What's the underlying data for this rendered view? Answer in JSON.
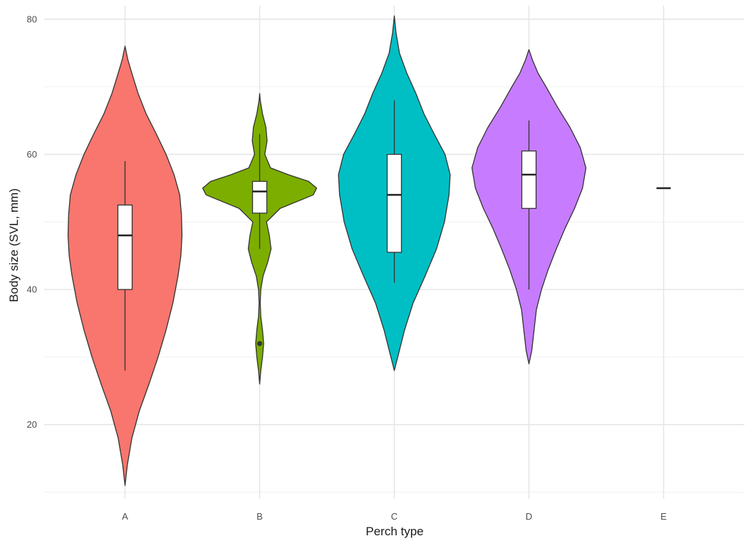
{
  "chart_data": {
    "type": "violin",
    "xlabel": "Perch type",
    "ylabel": "Body size (SVL, mm)",
    "ylim": [
      9,
      82
    ],
    "y_ticks": [
      20,
      40,
      60,
      80
    ],
    "categories": [
      "A",
      "B",
      "C",
      "D",
      "E"
    ],
    "grid": true,
    "legend": "none",
    "groups": [
      {
        "category": "A",
        "color": "#F8766D",
        "box": {
          "whisker_low": 28,
          "q1": 40,
          "median": 48,
          "q3": 52.5,
          "whisker_high": 59
        },
        "outliers": [],
        "density": [
          [
            11,
            0
          ],
          [
            14,
            0.04
          ],
          [
            18,
            0.12
          ],
          [
            22,
            0.25
          ],
          [
            26,
            0.42
          ],
          [
            30,
            0.58
          ],
          [
            34,
            0.72
          ],
          [
            38,
            0.84
          ],
          [
            42,
            0.93
          ],
          [
            45,
            0.98
          ],
          [
            48,
            1.0
          ],
          [
            51,
            0.99
          ],
          [
            54,
            0.96
          ],
          [
            57,
            0.86
          ],
          [
            60,
            0.72
          ],
          [
            63,
            0.55
          ],
          [
            66,
            0.37
          ],
          [
            69,
            0.23
          ],
          [
            72,
            0.12
          ],
          [
            74,
            0.05
          ],
          [
            76,
            0
          ]
        ]
      },
      {
        "category": "B",
        "color": "#7CAE00",
        "box": {
          "whisker_low": 46,
          "q1": 51.3,
          "median": 54.5,
          "q3": 56,
          "whisker_high": 63
        },
        "outliers": [
          32
        ],
        "density": [
          [
            26,
            0
          ],
          [
            28,
            0.02
          ],
          [
            30,
            0.05
          ],
          [
            32,
            0.07
          ],
          [
            34,
            0.05
          ],
          [
            36,
            0.02
          ],
          [
            38,
            0.01
          ],
          [
            40,
            0.02
          ],
          [
            42,
            0.06
          ],
          [
            44,
            0.14
          ],
          [
            46,
            0.2
          ],
          [
            48,
            0.17
          ],
          [
            50,
            0.12
          ],
          [
            52,
            0.36
          ],
          [
            54,
            0.94
          ],
          [
            55,
            1.0
          ],
          [
            56,
            0.86
          ],
          [
            57,
            0.5
          ],
          [
            58,
            0.19
          ],
          [
            60,
            0.09
          ],
          [
            62,
            0.13
          ],
          [
            64,
            0.11
          ],
          [
            66,
            0.05
          ],
          [
            68,
            0.01
          ],
          [
            69,
            0
          ]
        ]
      },
      {
        "category": "C",
        "color": "#00BFC4",
        "box": {
          "whisker_low": 41,
          "q1": 45.5,
          "median": 54,
          "q3": 60,
          "whisker_high": 68
        },
        "outliers": [],
        "density": [
          [
            28,
            0
          ],
          [
            30,
            0.06
          ],
          [
            34,
            0.18
          ],
          [
            38,
            0.33
          ],
          [
            42,
            0.54
          ],
          [
            46,
            0.74
          ],
          [
            50,
            0.88
          ],
          [
            54,
            0.96
          ],
          [
            57,
            0.98
          ],
          [
            60,
            0.89
          ],
          [
            63,
            0.7
          ],
          [
            66,
            0.52
          ],
          [
            69,
            0.38
          ],
          [
            72,
            0.22
          ],
          [
            75,
            0.09
          ],
          [
            78,
            0.03
          ],
          [
            80.5,
            0
          ]
        ]
      },
      {
        "category": "D",
        "color": "#C77CFF",
        "box": {
          "whisker_low": 40,
          "q1": 52,
          "median": 57,
          "q3": 60.5,
          "whisker_high": 65
        },
        "outliers": [],
        "density": [
          [
            29,
            0
          ],
          [
            31,
            0.05
          ],
          [
            34,
            0.09
          ],
          [
            37,
            0.13
          ],
          [
            40,
            0.22
          ],
          [
            43,
            0.34
          ],
          [
            46,
            0.48
          ],
          [
            49,
            0.63
          ],
          [
            52,
            0.8
          ],
          [
            55,
            0.94
          ],
          [
            58,
            1.0
          ],
          [
            61,
            0.9
          ],
          [
            64,
            0.72
          ],
          [
            67,
            0.5
          ],
          [
            70,
            0.3
          ],
          [
            72,
            0.16
          ],
          [
            74,
            0.06
          ],
          [
            75.5,
            0
          ]
        ]
      },
      {
        "category": "E",
        "color": "#000000",
        "box": {
          "whisker_low": 55,
          "q1": 55,
          "median": 55,
          "q3": 55,
          "whisker_high": 55
        },
        "outliers": [],
        "density": []
      }
    ]
  }
}
